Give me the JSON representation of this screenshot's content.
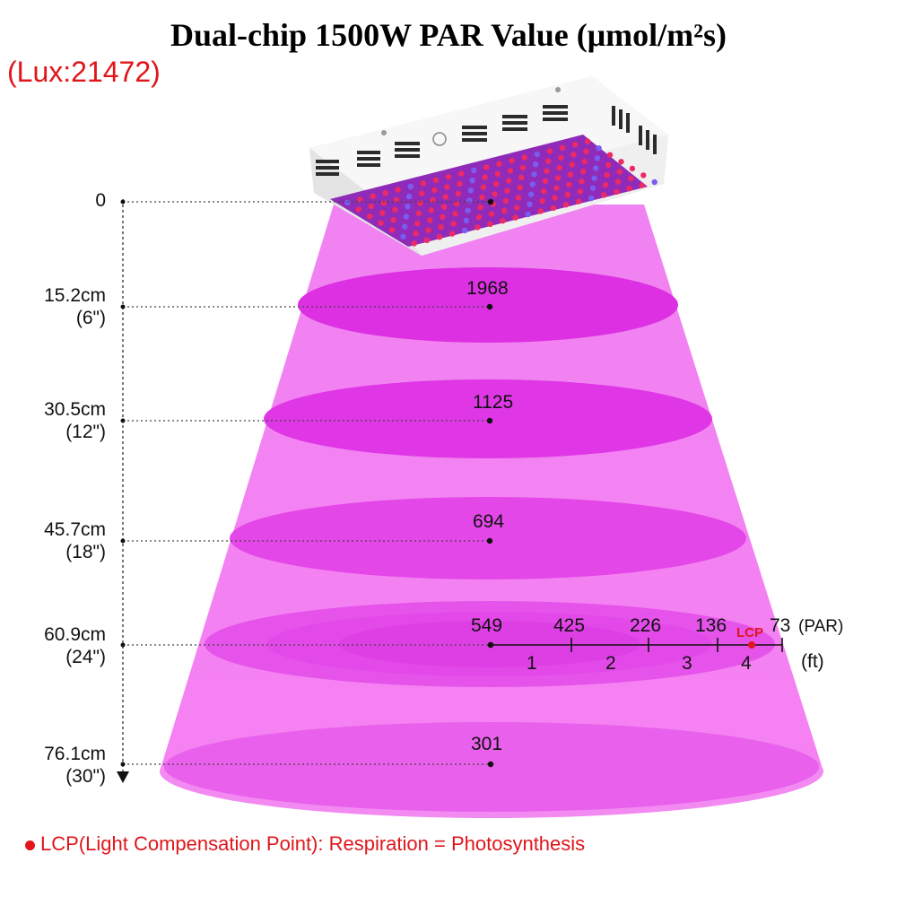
{
  "title": "Dual-chip 1500W PAR Value (μmol/m²s)",
  "lux": "(Lux:21472)",
  "colors": {
    "beam": "#f26df2",
    "ellipse": "#e23fe8",
    "accent_red": "#e0161b",
    "lamp_body": "#f2f2f2",
    "led_red": "#ee2a64",
    "led_blue": "#7a5cf0"
  },
  "icons": [
    "grow-light-panel-icon"
  ],
  "levels": [
    {
      "distance_cm": "0",
      "distance_in": "",
      "par": ""
    },
    {
      "distance_cm": "15.2cm",
      "distance_in": "(6\")",
      "par": "1968"
    },
    {
      "distance_cm": "30.5cm",
      "distance_in": "(12\")",
      "par": "1125"
    },
    {
      "distance_cm": "45.7cm",
      "distance_in": "(18\")",
      "par": "694"
    },
    {
      "distance_cm": "60.9cm",
      "distance_in": "(24\")",
      "par": "549"
    },
    {
      "distance_cm": "76.1cm",
      "distance_in": "(30\")",
      "par": "301"
    }
  ],
  "spread": {
    "par_values": [
      "425",
      "226",
      "136",
      "73"
    ],
    "feet": [
      "1",
      "2",
      "3",
      "4"
    ],
    "lcp_label": "LCP",
    "par_unit": "(PAR)",
    "ft_unit": "(ft)"
  },
  "footnote": "LCP(Light Compensation Point): Respiration = Photosynthesis"
}
